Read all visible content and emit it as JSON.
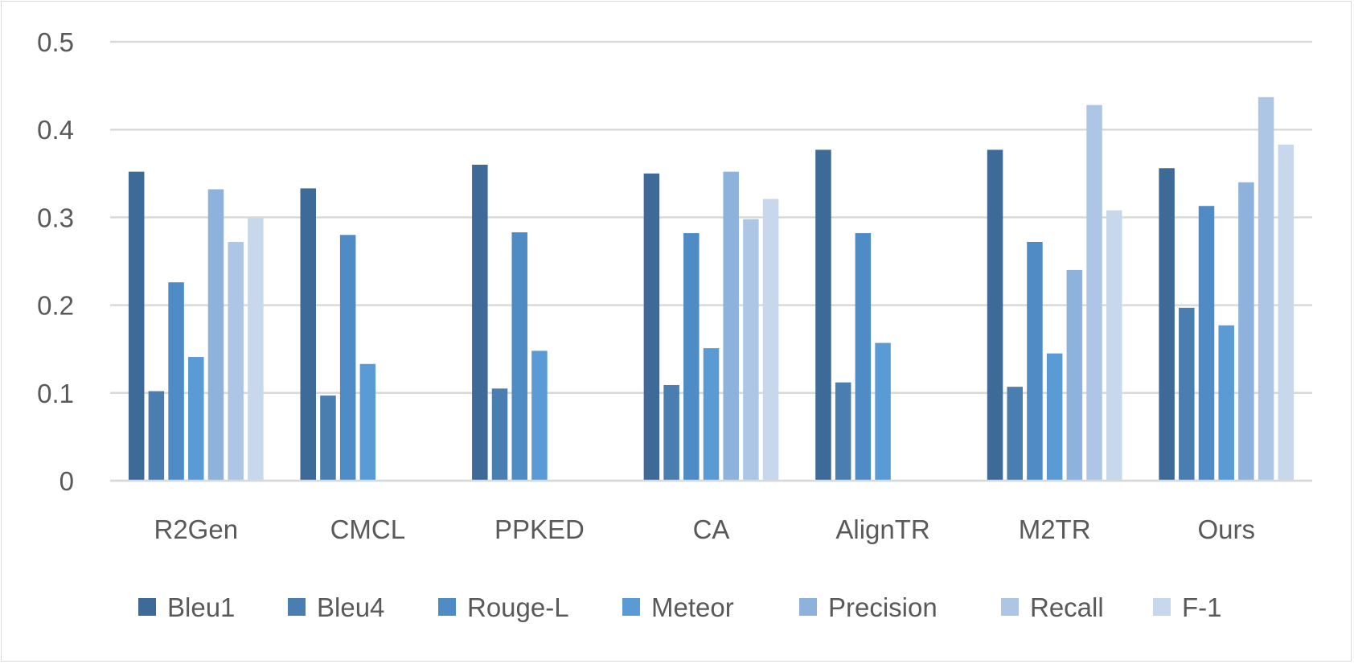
{
  "chart_data": {
    "type": "bar",
    "title": "",
    "xlabel": "",
    "ylabel": "",
    "ylim": [
      0,
      0.5
    ],
    "yticks": [
      "0",
      "0.1",
      "0.2",
      "0.3",
      "0.4",
      "0.5"
    ],
    "grid": true,
    "legend_position": "bottom",
    "categories": [
      "R2Gen",
      "CMCL",
      "PPKED",
      "CA",
      "AlignTR",
      "M2TR",
      "Ours"
    ],
    "series": [
      {
        "name": "Bleu1",
        "color": "#3e6a97",
        "values": [
          0.352,
          0.333,
          0.36,
          0.35,
          0.377,
          0.377,
          0.356
        ]
      },
      {
        "name": "Bleu4",
        "color": "#4a7db0",
        "values": [
          0.102,
          0.097,
          0.105,
          0.109,
          0.112,
          0.107,
          0.197
        ]
      },
      {
        "name": "Rouge-L",
        "color": "#4f8bc4",
        "values": [
          0.226,
          0.28,
          0.283,
          0.282,
          0.282,
          0.272,
          0.313
        ]
      },
      {
        "name": "Meteor",
        "color": "#5b9bd5",
        "values": [
          0.141,
          0.133,
          0.148,
          0.151,
          0.157,
          0.145,
          0.177
        ]
      },
      {
        "name": "Precision",
        "color": "#8db3dd",
        "values": [
          0.332,
          null,
          null,
          0.352,
          null,
          0.24,
          0.34
        ]
      },
      {
        "name": "Recall",
        "color": "#adc6e6",
        "values": [
          0.272,
          null,
          null,
          0.298,
          null,
          0.428,
          0.437
        ]
      },
      {
        "name": "F-1",
        "color": "#c7d8ec",
        "values": [
          0.299,
          null,
          null,
          0.321,
          null,
          0.308,
          0.383
        ]
      }
    ]
  }
}
